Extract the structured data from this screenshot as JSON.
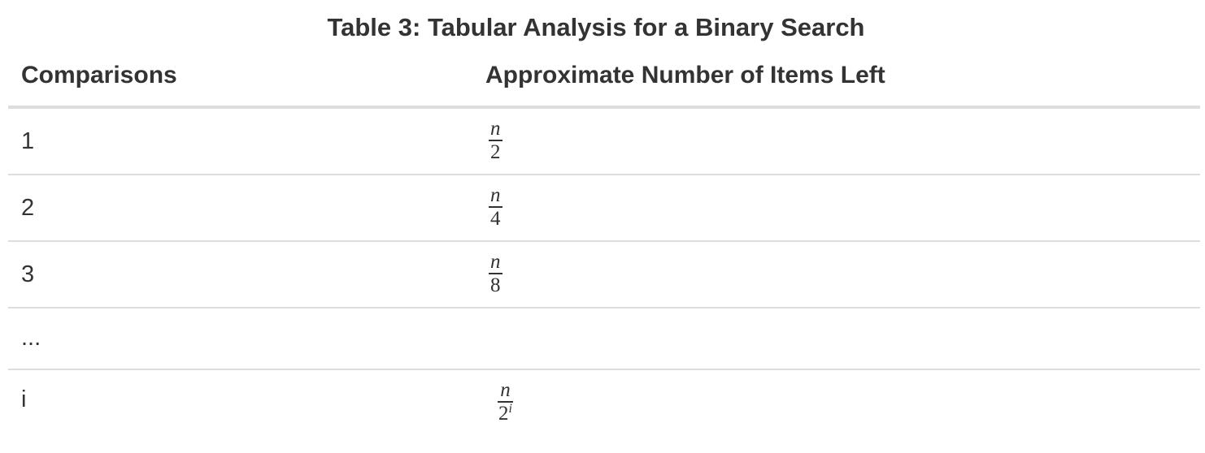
{
  "caption": "Table 3: Tabular Analysis for a Binary Search",
  "columns": [
    "Comparisons",
    "Approximate Number of Items Left"
  ],
  "rows": [
    {
      "comparisons": "1",
      "numerator": "n",
      "denominator": "2",
      "exponent": ""
    },
    {
      "comparisons": "2",
      "numerator": "n",
      "denominator": "4",
      "exponent": ""
    },
    {
      "comparisons": "3",
      "numerator": "n",
      "denominator": "8",
      "exponent": ""
    },
    {
      "comparisons": "...",
      "numerator": "",
      "denominator": "",
      "exponent": ""
    },
    {
      "comparisons": "i",
      "numerator": "n",
      "denominator": "2",
      "exponent": "i"
    }
  ]
}
